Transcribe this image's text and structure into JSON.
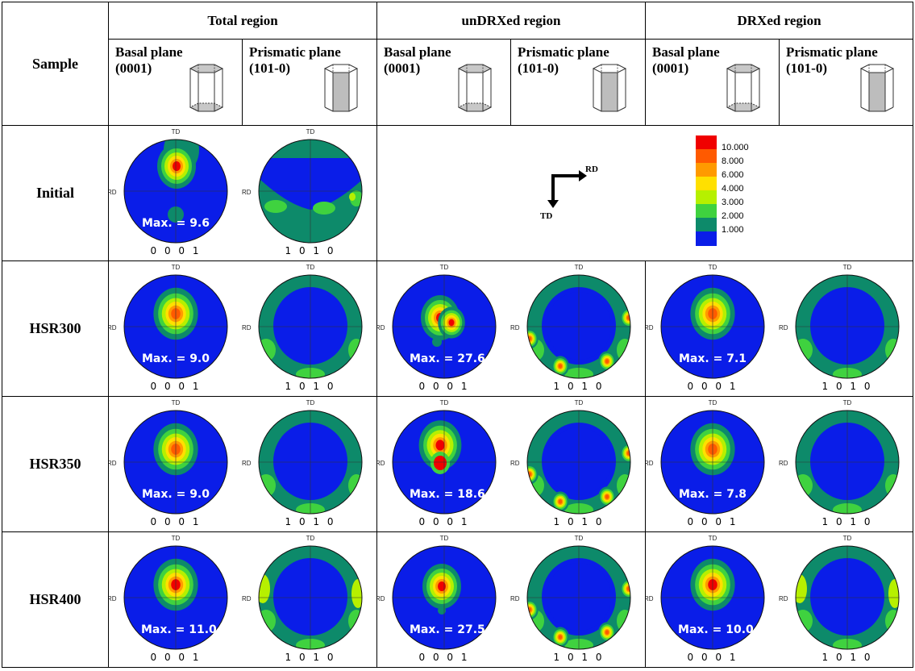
{
  "header": {
    "sample": "Sample",
    "regions": [
      "Total region",
      "unDRXed region",
      "DRXed region"
    ],
    "planes": [
      {
        "name": "Basal plane",
        "index": "(0001)",
        "type": "basal"
      },
      {
        "name": "Prismatic plane",
        "index": "(101-0)",
        "type": "prismatic"
      }
    ]
  },
  "axis_labels": {
    "td": "TD",
    "rd": "RD"
  },
  "pole_labels": {
    "basal": "0 0 0 1",
    "prismatic": "1 0 1 0"
  },
  "rows": [
    {
      "label": "Initial",
      "total": {
        "max": "Max. = 9.6"
      }
    },
    {
      "label": "HSR300",
      "total": {
        "max": "Max. = 9.0"
      },
      "undrx": {
        "max": "Max. = 27.6"
      },
      "drx": {
        "max": "Max. = 7.1"
      }
    },
    {
      "label": "HSR350",
      "total": {
        "max": "Max. = 9.0"
      },
      "undrx": {
        "max": "Max. = 18.6"
      },
      "drx": {
        "max": "Max. = 7.8"
      }
    },
    {
      "label": "HSR400",
      "total": {
        "max": "Max. = 11.0"
      },
      "undrx": {
        "max": "Max. = 27.5"
      },
      "drx": {
        "max": "Max. = 10.0"
      }
    }
  ],
  "legend": {
    "levels": [
      "10.000",
      "8.000",
      "6.000",
      "4.000",
      "3.000",
      "2.000",
      "1.000"
    ],
    "colors": [
      "#f00000",
      "#ff5a00",
      "#ff9a00",
      "#ffe000",
      "#b6f000",
      "#3fd23f",
      "#0d8a6a",
      "#0a1de8"
    ]
  },
  "axes_diagram": {
    "rd": "RD",
    "td": "TD"
  },
  "colors": {
    "background": "#0a1de8",
    "contour_green": "#3fd23f",
    "contour_teal": "#0d8a6a",
    "hot": "#f00000"
  }
}
